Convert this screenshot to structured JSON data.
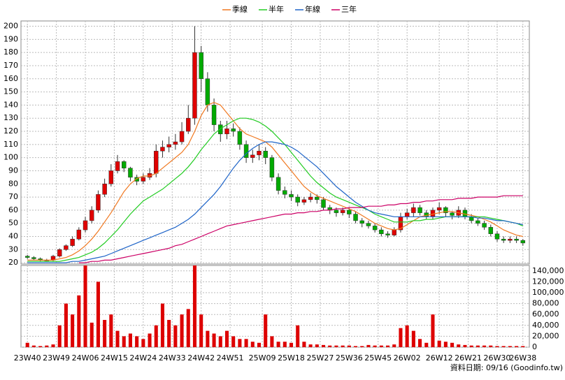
{
  "chart_data": [
    {
      "type": "candlestick",
      "x": [
        0,
        2,
        4,
        6,
        8,
        10,
        12,
        14,
        16,
        18,
        20,
        22,
        24,
        26,
        28,
        30,
        32,
        34,
        36,
        38,
        40,
        42,
        44,
        46,
        48,
        50,
        52,
        54,
        56,
        58,
        60,
        62,
        64,
        66,
        68,
        70,
        72,
        74,
        76,
        78,
        80,
        82,
        84,
        86,
        88,
        90,
        92,
        94,
        96,
        98,
        100,
        102,
        104,
        106,
        108,
        110,
        112,
        114,
        116,
        118,
        120,
        122,
        124,
        126,
        128,
        130,
        132,
        134,
        136,
        138,
        140,
        142,
        144,
        146,
        148,
        150,
        152,
        154
      ],
      "open": [
        25,
        24,
        23,
        22,
        22,
        25,
        30,
        33,
        38,
        45,
        52,
        60,
        72,
        80,
        90,
        97,
        92,
        85,
        82,
        85,
        88,
        105,
        108,
        110,
        112,
        120,
        130,
        180,
        160,
        140,
        125,
        118,
        122,
        120,
        110,
        100,
        102,
        105,
        100,
        85,
        75,
        72,
        70,
        66,
        68,
        70,
        68,
        62,
        60,
        58,
        60,
        57,
        52,
        50,
        48,
        45,
        42,
        41,
        45,
        55,
        58,
        62,
        58,
        55,
        60,
        62,
        58,
        56,
        60,
        55,
        52,
        50,
        47,
        42,
        38,
        37,
        38,
        37
      ],
      "high": [
        26,
        25,
        24,
        23,
        26,
        31,
        34,
        40,
        47,
        55,
        63,
        75,
        84,
        95,
        102,
        98,
        93,
        87,
        88,
        92,
        110,
        113,
        116,
        118,
        127,
        140,
        200,
        185,
        165,
        145,
        128,
        128,
        126,
        123,
        113,
        106,
        110,
        108,
        102,
        88,
        78,
        75,
        72,
        70,
        73,
        72,
        70,
        64,
        62,
        62,
        62,
        59,
        54,
        52,
        50,
        47,
        44,
        47,
        58,
        61,
        65,
        64,
        60,
        62,
        66,
        63,
        59,
        63,
        62,
        57,
        54,
        52,
        49,
        44,
        40,
        40,
        40,
        38
      ],
      "low": [
        23,
        22,
        21,
        21,
        21,
        24,
        29,
        32,
        37,
        43,
        50,
        58,
        70,
        78,
        88,
        89,
        82,
        79,
        80,
        83,
        85,
        100,
        104,
        106,
        110,
        118,
        125,
        150,
        135,
        120,
        112,
        114,
        116,
        106,
        96,
        96,
        98,
        95,
        82,
        72,
        69,
        67,
        63,
        64,
        66,
        65,
        60,
        57,
        55,
        56,
        54,
        50,
        47,
        46,
        43,
        40,
        39,
        40,
        43,
        53,
        55,
        56,
        53,
        53,
        57,
        55,
        53,
        54,
        53,
        50,
        48,
        45,
        40,
        36,
        35,
        35,
        35,
        33
      ],
      "close": [
        24,
        23,
        22,
        22,
        25,
        30,
        33,
        38,
        45,
        52,
        60,
        72,
        80,
        90,
        97,
        92,
        85,
        82,
        85,
        88,
        105,
        108,
        110,
        112,
        120,
        130,
        180,
        160,
        140,
        125,
        118,
        122,
        120,
        110,
        100,
        102,
        105,
        100,
        85,
        75,
        72,
        70,
        66,
        68,
        70,
        68,
        62,
        60,
        58,
        60,
        57,
        52,
        50,
        48,
        45,
        42,
        41,
        45,
        55,
        58,
        62,
        58,
        55,
        60,
        62,
        58,
        56,
        60,
        55,
        52,
        50,
        47,
        42,
        38,
        37,
        38,
        37,
        35
      ],
      "up_color": "#e00000",
      "down_color": "#00aa00",
      "series": [
        {
          "name": "季線",
          "color": "#f07820",
          "values": [
            22,
            22,
            22,
            22,
            22,
            23,
            24,
            26,
            29,
            33,
            38,
            44,
            51,
            58,
            66,
            74,
            80,
            84,
            86,
            86,
            88,
            92,
            96,
            100,
            104,
            110,
            120,
            132,
            140,
            142,
            140,
            134,
            128,
            122,
            118,
            116,
            114,
            112,
            108,
            102,
            96,
            90,
            84,
            78,
            74,
            71,
            69,
            67,
            65,
            63,
            61,
            59,
            56,
            53,
            50,
            48,
            46,
            45,
            46,
            49,
            52,
            55,
            56,
            57,
            58,
            59,
            59,
            58,
            57,
            56,
            55,
            53,
            51,
            48,
            45,
            43,
            41,
            40
          ]
        },
        {
          "name": "半年",
          "color": "#22cc22",
          "values": [
            21,
            21,
            21,
            21,
            21,
            21,
            22,
            23,
            24,
            26,
            28,
            31,
            35,
            40,
            45,
            51,
            57,
            62,
            67,
            70,
            73,
            76,
            80,
            84,
            88,
            93,
            99,
            106,
            112,
            118,
            122,
            125,
            128,
            130,
            130,
            129,
            127,
            124,
            120,
            115,
            110,
            104,
            98,
            92,
            86,
            81,
            77,
            73,
            70,
            68,
            66,
            64,
            62,
            60,
            57,
            55,
            53,
            51,
            51,
            51,
            52,
            52,
            53,
            53,
            54,
            55,
            55,
            55,
            55,
            55,
            55,
            55,
            54,
            53,
            52,
            51,
            50,
            48
          ]
        },
        {
          "name": "年線",
          "color": "#1e64c8",
          "values": [
            20,
            20,
            20,
            20,
            20,
            20,
            20,
            21,
            21,
            22,
            23,
            24,
            25,
            27,
            29,
            31,
            33,
            35,
            37,
            39,
            41,
            43,
            45,
            47,
            50,
            53,
            57,
            62,
            67,
            72,
            78,
            85,
            92,
            98,
            103,
            107,
            110,
            112,
            112,
            111,
            110,
            108,
            105,
            101,
            97,
            93,
            88,
            83,
            78,
            74,
            70,
            66,
            63,
            60,
            58,
            57,
            56,
            55,
            55,
            55,
            55,
            55,
            55,
            55,
            55,
            55,
            55,
            55,
            55,
            55,
            54,
            54,
            53,
            52,
            52,
            51,
            50,
            49
          ]
        },
        {
          "name": "三年",
          "color": "#cc0066",
          "values": [
            null,
            null,
            null,
            null,
            null,
            null,
            null,
            null,
            20,
            20,
            21,
            21,
            22,
            22,
            23,
            24,
            25,
            26,
            27,
            28,
            29,
            30,
            31,
            33,
            34,
            36,
            38,
            40,
            42,
            44,
            46,
            48,
            49,
            50,
            51,
            52,
            53,
            54,
            55,
            56,
            57,
            57,
            58,
            58,
            59,
            59,
            60,
            60,
            61,
            61,
            62,
            62,
            62,
            63,
            63,
            63,
            64,
            64,
            65,
            65,
            66,
            66,
            67,
            67,
            68,
            68,
            68,
            69,
            69,
            69,
            70,
            70,
            70,
            70,
            71,
            71,
            71,
            71
          ]
        }
      ],
      "xlim": [
        -2,
        156
      ],
      "ylim": [
        19,
        204
      ],
      "yticks": [
        20,
        30,
        40,
        50,
        60,
        70,
        80,
        90,
        100,
        110,
        120,
        130,
        140,
        150,
        160,
        170,
        180,
        190,
        200
      ],
      "grid": true,
      "legend": "top"
    },
    {
      "type": "bar",
      "x": [
        0,
        2,
        4,
        6,
        8,
        10,
        12,
        14,
        16,
        18,
        20,
        22,
        24,
        26,
        28,
        30,
        32,
        34,
        36,
        38,
        40,
        42,
        44,
        46,
        48,
        50,
        52,
        54,
        56,
        58,
        60,
        62,
        64,
        66,
        68,
        70,
        72,
        74,
        76,
        78,
        80,
        82,
        84,
        86,
        88,
        90,
        92,
        94,
        96,
        98,
        100,
        102,
        104,
        106,
        108,
        110,
        112,
        114,
        116,
        118,
        120,
        122,
        124,
        126,
        128,
        130,
        132,
        134,
        136,
        138,
        140,
        142,
        144,
        146,
        148,
        150,
        152,
        154
      ],
      "values": [
        8000,
        3000,
        2000,
        3000,
        5000,
        40000,
        80000,
        60000,
        95000,
        150000,
        45000,
        120000,
        50000,
        60000,
        30000,
        20000,
        25000,
        20000,
        15000,
        25000,
        40000,
        80000,
        50000,
        40000,
        60000,
        70000,
        150000,
        60000,
        30000,
        25000,
        20000,
        30000,
        20000,
        15000,
        15000,
        10000,
        8000,
        60000,
        20000,
        10000,
        10000,
        8000,
        40000,
        10000,
        5000,
        5000,
        4000,
        3000,
        3000,
        3000,
        3000,
        2000,
        2000,
        4000,
        3000,
        3000,
        3000,
        5000,
        35000,
        40000,
        30000,
        15000,
        8000,
        60000,
        12000,
        10000,
        8000,
        5000,
        4000,
        3000,
        3000,
        3000,
        3000,
        2000,
        2000,
        2000,
        2000,
        2000
      ],
      "color": "#dd0000",
      "xlim": [
        -2,
        156
      ],
      "ylim": [
        0,
        150000
      ],
      "yticks": [
        0,
        {
          "value": 20000,
          "label": "20,000"
        },
        {
          "value": 40000,
          "label": "40,000"
        },
        {
          "value": 60000,
          "label": "60,000"
        },
        {
          "value": 80000,
          "label": "80,000"
        },
        {
          "value": 100000,
          "label": "100,000"
        },
        {
          "value": 120000,
          "label": "120,000"
        },
        {
          "value": 140000,
          "label": "140,000"
        }
      ],
      "xticks": [
        {
          "value": 0,
          "label": "23W40"
        },
        {
          "value": 9,
          "label": "23W49"
        },
        {
          "value": 18,
          "label": "24W06"
        },
        {
          "value": 27,
          "label": "24W15"
        },
        {
          "value": 36,
          "label": "24W24"
        },
        {
          "value": 45,
          "label": "24W33"
        },
        {
          "value": 54,
          "label": "24W42"
        },
        {
          "value": 63,
          "label": "24W51"
        },
        {
          "value": 73,
          "label": "25W09"
        },
        {
          "value": 82,
          "label": "25W18"
        },
        {
          "value": 91,
          "label": "25W27"
        },
        {
          "value": 100,
          "label": "25W36"
        },
        {
          "value": 109,
          "label": "25W45"
        },
        {
          "value": 118,
          "label": "26W02"
        },
        {
          "value": 128,
          "label": "26W12"
        },
        {
          "value": 137,
          "label": "26W21"
        },
        {
          "value": 146,
          "label": "26W30"
        },
        {
          "value": 154,
          "label": "26W38"
        }
      ],
      "grid": true,
      "note": "資料日期: 09/16 (Goodinfo.tw)"
    }
  ]
}
